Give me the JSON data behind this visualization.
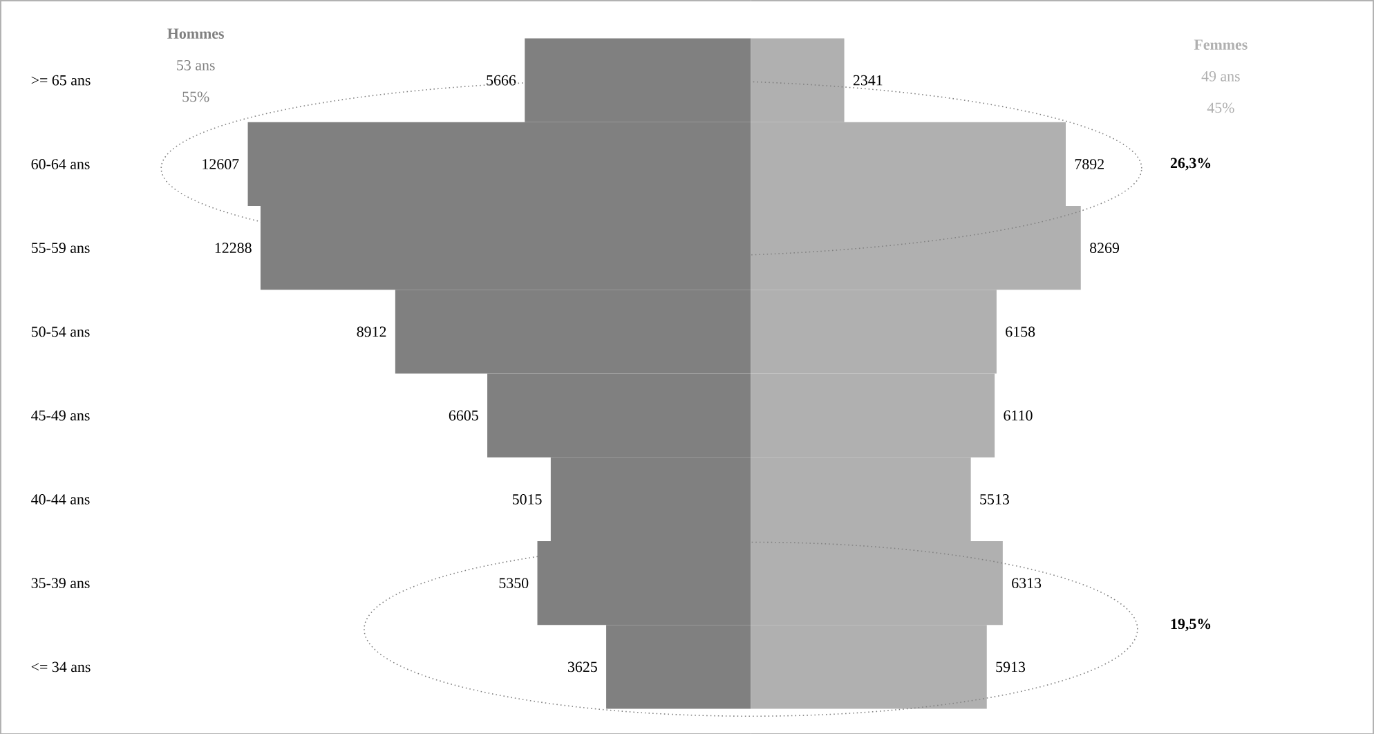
{
  "chart_data": [
    {
      "type": "bar",
      "orientation": "horizontal",
      "data_labels": true,
      "tick_labels": "y",
      "xlim": [
        18800,
        0
      ],
      "categories": [
        ">= 65 ans",
        "60-64 ans",
        "55-59 ans",
        "50-54 ans",
        "45-49 ans",
        "40-44 ans",
        "35-39 ans",
        "<= 34 ans"
      ],
      "series": [
        {
          "name": "Hommes",
          "color": "#808080",
          "values": [
            5666,
            12607,
            12288,
            8912,
            6605,
            5015,
            5350,
            3625
          ]
        }
      ],
      "annotations": [
        "53 ans",
        "55%"
      ]
    },
    {
      "type": "bar",
      "orientation": "horizontal",
      "data_labels": true,
      "tick_labels": false,
      "xlim": [
        0,
        15600
      ],
      "categories": [
        null,
        null,
        null,
        null,
        null,
        null,
        null,
        null
      ],
      "series": [
        {
          "name": "Femmes",
          "color": "#b0b0b0",
          "values": [
            2341,
            7892,
            8269,
            6158,
            6110,
            5513,
            6313,
            5913
          ]
        }
      ],
      "annotations": [
        "49 ans",
        "45%",
        "26,3%",
        "19,5%"
      ]
    }
  ]
}
